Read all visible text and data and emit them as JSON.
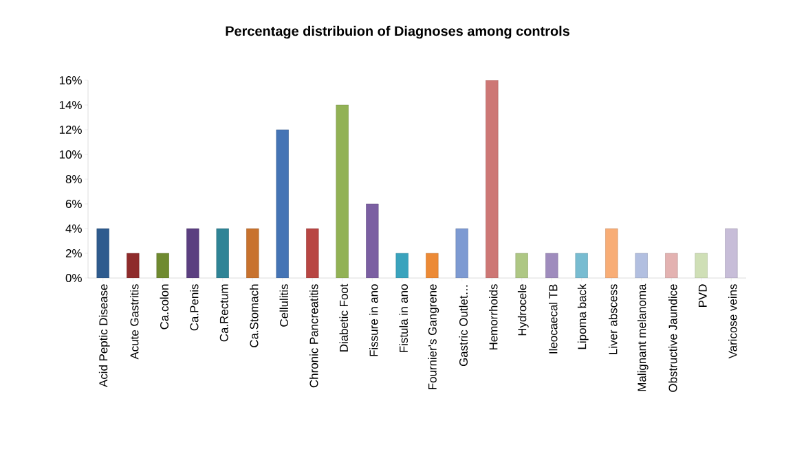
{
  "chart_data": {
    "type": "bar",
    "title": "Percentage distribuion of Diagnoses among controls",
    "categories": [
      "Acid Peptic Disease",
      "Acute Gastritis",
      "Ca.colon",
      "Ca.Penis",
      "Ca.Rectum",
      "Ca.Stomach",
      "Cellulitis",
      "Chronic Pancreatitis",
      "Diabetic Foot",
      "Fissure in ano",
      "Fistula in ano",
      "Fournier's Gangrene",
      "Gastric Outlet…",
      "Hemorrhoids",
      "Hydrocele",
      "Ileocaecal TB",
      "Lipoma back",
      "Liver abscess",
      "Malignant melanoma",
      "Obstructive Jaundice",
      "PVD",
      "Varicose veins"
    ],
    "values": [
      4,
      2,
      2,
      4,
      4,
      4,
      12,
      4,
      14,
      6,
      2,
      2,
      4,
      16,
      2,
      2,
      2,
      4,
      2,
      2,
      2,
      4
    ],
    "colors": [
      "#2e5b8e",
      "#8e2b2b",
      "#6f8a30",
      "#5b3f80",
      "#2f8496",
      "#c8722e",
      "#4574b5",
      "#b84643",
      "#92b255",
      "#7b5fa2",
      "#3aa3bd",
      "#ec8a36",
      "#7d9ad2",
      "#cd7775",
      "#aec784",
      "#9f8cbd",
      "#78bcd1",
      "#f8ad76",
      "#b2bfe0",
      "#e3b2b1",
      "#cfdfb6",
      "#c7bdd8"
    ],
    "ylim": [
      0,
      16
    ],
    "yticks": [
      {
        "value": 0,
        "label": "0%"
      },
      {
        "value": 2,
        "label": "2%"
      },
      {
        "value": 4,
        "label": "4%"
      },
      {
        "value": 6,
        "label": "6%"
      },
      {
        "value": 8,
        "label": "8%"
      },
      {
        "value": 10,
        "label": "10%"
      },
      {
        "value": 12,
        "label": "12%"
      },
      {
        "value": 14,
        "label": "14%"
      },
      {
        "value": 16,
        "label": "16%"
      }
    ],
    "grid": false
  }
}
